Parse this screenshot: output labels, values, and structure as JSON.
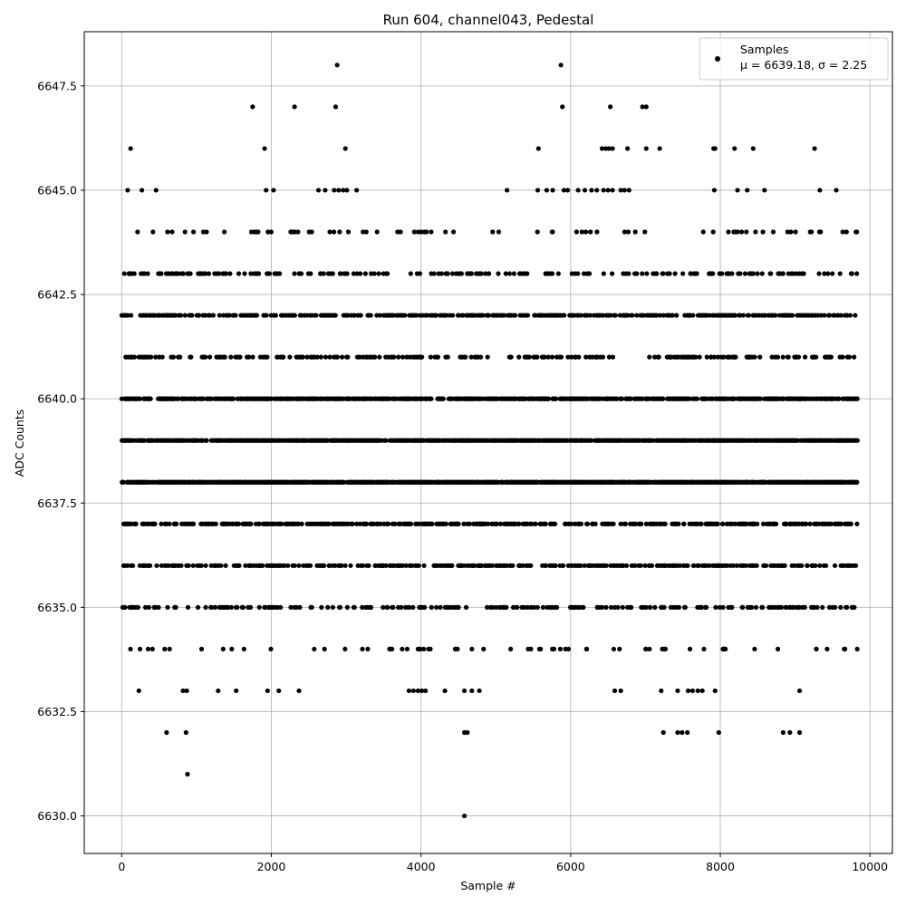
{
  "chart_data": {
    "type": "scatter",
    "title": "Run 604, channel043, Pedestal",
    "xlabel": "Sample #",
    "ylabel": "ADC Counts",
    "xlim": [
      -500,
      10300
    ],
    "ylim": [
      6629.1,
      6648.8
    ],
    "xticks": [
      0,
      2000,
      4000,
      6000,
      8000,
      10000
    ],
    "xtick_labels": [
      "0",
      "2000",
      "4000",
      "6000",
      "8000",
      "10000"
    ],
    "yticks": [
      6630.0,
      6632.5,
      6635.0,
      6637.5,
      6640.0,
      6642.5,
      6645.0,
      6647.5
    ],
    "ytick_labels": [
      "6630.0",
      "6632.5",
      "6635.0",
      "6637.5",
      "6640.0",
      "6642.5",
      "6645.0",
      "6647.5"
    ],
    "grid": true,
    "legend_position": "top-right",
    "series": [
      {
        "name": "Samples",
        "marker_color": "#000000",
        "n_samples": 9830,
        "dense_levels": [
          {
            "y": 6642,
            "x_range": [
              0,
              9830
            ],
            "density": 0.42
          },
          {
            "y": 6641,
            "x_range": [
              0,
              9830
            ],
            "density": 0.25
          },
          {
            "y": 6640,
            "x_range": [
              0,
              9830
            ],
            "density": 0.62
          },
          {
            "y": 6639,
            "x_range": [
              0,
              9830
            ],
            "density": 0.8
          },
          {
            "y": 6638,
            "x_range": [
              0,
              9830
            ],
            "density": 0.85
          },
          {
            "y": 6637,
            "x_range": [
              0,
              9830
            ],
            "density": 0.42
          },
          {
            "y": 6636,
            "x_range": [
              0,
              9830
            ],
            "density": 0.35
          },
          {
            "y": 6643,
            "x_range": [
              0,
              9830
            ],
            "density": 0.22
          },
          {
            "y": 6635,
            "x_range": [
              0,
              9830
            ],
            "density": 0.22
          },
          {
            "y": 6644,
            "x_range": [
              0,
              9830
            ],
            "density": 0.08
          },
          {
            "y": 6634,
            "x_range": [
              0,
              9830
            ],
            "density": 0.06
          }
        ],
        "sparse_points": [
          {
            "x": 80,
            "y": 6645
          },
          {
            "x": 270,
            "y": 6645
          },
          {
            "x": 460,
            "y": 6645
          },
          {
            "x": 1930,
            "y": 6645
          },
          {
            "x": 2030,
            "y": 6645
          },
          {
            "x": 2630,
            "y": 6645
          },
          {
            "x": 2720,
            "y": 6645
          },
          {
            "x": 2840,
            "y": 6645
          },
          {
            "x": 2900,
            "y": 6645
          },
          {
            "x": 2960,
            "y": 6645
          },
          {
            "x": 3010,
            "y": 6645
          },
          {
            "x": 3140,
            "y": 6645
          },
          {
            "x": 5150,
            "y": 6645
          },
          {
            "x": 5560,
            "y": 6645
          },
          {
            "x": 5680,
            "y": 6645
          },
          {
            "x": 5760,
            "y": 6645
          },
          {
            "x": 5910,
            "y": 6645
          },
          {
            "x": 5960,
            "y": 6645
          },
          {
            "x": 6100,
            "y": 6645
          },
          {
            "x": 6190,
            "y": 6645
          },
          {
            "x": 6280,
            "y": 6645
          },
          {
            "x": 6350,
            "y": 6645
          },
          {
            "x": 6440,
            "y": 6645
          },
          {
            "x": 6500,
            "y": 6645
          },
          {
            "x": 6560,
            "y": 6645
          },
          {
            "x": 6670,
            "y": 6645
          },
          {
            "x": 6720,
            "y": 6645
          },
          {
            "x": 6780,
            "y": 6645
          },
          {
            "x": 7920,
            "y": 6645
          },
          {
            "x": 8230,
            "y": 6645
          },
          {
            "x": 8360,
            "y": 6645
          },
          {
            "x": 8590,
            "y": 6645
          },
          {
            "x": 9330,
            "y": 6645
          },
          {
            "x": 9550,
            "y": 6645
          },
          {
            "x": 120,
            "y": 6646
          },
          {
            "x": 1910,
            "y": 6646
          },
          {
            "x": 2990,
            "y": 6646
          },
          {
            "x": 5570,
            "y": 6646
          },
          {
            "x": 6420,
            "y": 6646
          },
          {
            "x": 6470,
            "y": 6646
          },
          {
            "x": 6510,
            "y": 6646
          },
          {
            "x": 6560,
            "y": 6646
          },
          {
            "x": 6760,
            "y": 6646
          },
          {
            "x": 7010,
            "y": 6646
          },
          {
            "x": 7190,
            "y": 6646
          },
          {
            "x": 7910,
            "y": 6646
          },
          {
            "x": 7930,
            "y": 6646
          },
          {
            "x": 8190,
            "y": 6646
          },
          {
            "x": 8440,
            "y": 6646
          },
          {
            "x": 9260,
            "y": 6646
          },
          {
            "x": 1750,
            "y": 6647
          },
          {
            "x": 2310,
            "y": 6647
          },
          {
            "x": 2860,
            "y": 6647
          },
          {
            "x": 5890,
            "y": 6647
          },
          {
            "x": 6530,
            "y": 6647
          },
          {
            "x": 6960,
            "y": 6647
          },
          {
            "x": 7010,
            "y": 6647
          },
          {
            "x": 2880,
            "y": 6648
          },
          {
            "x": 5870,
            "y": 6648
          },
          {
            "x": 230,
            "y": 6633
          },
          {
            "x": 820,
            "y": 6633
          },
          {
            "x": 870,
            "y": 6633
          },
          {
            "x": 1290,
            "y": 6633
          },
          {
            "x": 1530,
            "y": 6633
          },
          {
            "x": 1950,
            "y": 6633
          },
          {
            "x": 2100,
            "y": 6633
          },
          {
            "x": 2370,
            "y": 6633
          },
          {
            "x": 3840,
            "y": 6633
          },
          {
            "x": 3900,
            "y": 6633
          },
          {
            "x": 3960,
            "y": 6633
          },
          {
            "x": 4010,
            "y": 6633
          },
          {
            "x": 4060,
            "y": 6633
          },
          {
            "x": 4320,
            "y": 6633
          },
          {
            "x": 4580,
            "y": 6633
          },
          {
            "x": 4680,
            "y": 6633
          },
          {
            "x": 4780,
            "y": 6633
          },
          {
            "x": 6590,
            "y": 6633
          },
          {
            "x": 6670,
            "y": 6633
          },
          {
            "x": 7210,
            "y": 6633
          },
          {
            "x": 7430,
            "y": 6633
          },
          {
            "x": 7570,
            "y": 6633
          },
          {
            "x": 7630,
            "y": 6633
          },
          {
            "x": 7700,
            "y": 6633
          },
          {
            "x": 7760,
            "y": 6633
          },
          {
            "x": 7930,
            "y": 6633
          },
          {
            "x": 9060,
            "y": 6633
          },
          {
            "x": 600,
            "y": 6632
          },
          {
            "x": 860,
            "y": 6632
          },
          {
            "x": 4580,
            "y": 6632
          },
          {
            "x": 4620,
            "y": 6632
          },
          {
            "x": 7240,
            "y": 6632
          },
          {
            "x": 7430,
            "y": 6632
          },
          {
            "x": 7490,
            "y": 6632
          },
          {
            "x": 7560,
            "y": 6632
          },
          {
            "x": 7980,
            "y": 6632
          },
          {
            "x": 8840,
            "y": 6632
          },
          {
            "x": 8930,
            "y": 6632
          },
          {
            "x": 9060,
            "y": 6632
          },
          {
            "x": 880,
            "y": 6631
          },
          {
            "x": 4580,
            "y": 6630
          }
        ]
      }
    ],
    "legend": {
      "entry": "Samples",
      "stats_line": "μ = 6639.18, σ = 2.25"
    }
  }
}
